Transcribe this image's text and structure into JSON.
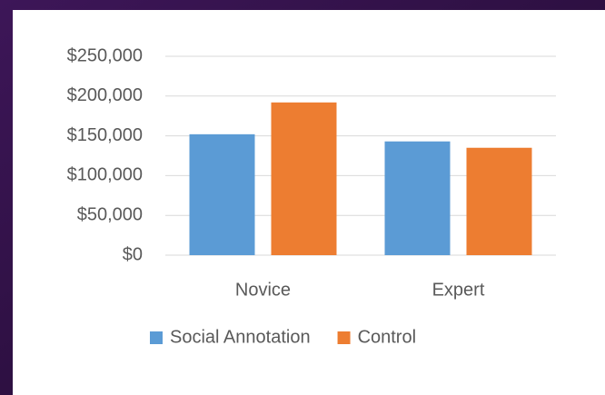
{
  "chart_data": {
    "type": "bar",
    "categories": [
      "Novice",
      "Expert"
    ],
    "series": [
      {
        "name": "Social Annotation",
        "color": "#5b9bd5",
        "values": [
          152000,
          143000
        ]
      },
      {
        "name": "Control",
        "color": "#ed7d31",
        "values": [
          192000,
          135000
        ]
      }
    ],
    "ylim": [
      0,
      250000
    ],
    "yticks": [
      {
        "value": 0,
        "label": "$0"
      },
      {
        "value": 50000,
        "label": "$50,000"
      },
      {
        "value": 100000,
        "label": "$100,000"
      },
      {
        "value": 150000,
        "label": "$150,000"
      },
      {
        "value": 200000,
        "label": "$200,000"
      },
      {
        "value": 250000,
        "label": "$250,000"
      }
    ],
    "grid": true,
    "legend": "bottom"
  }
}
